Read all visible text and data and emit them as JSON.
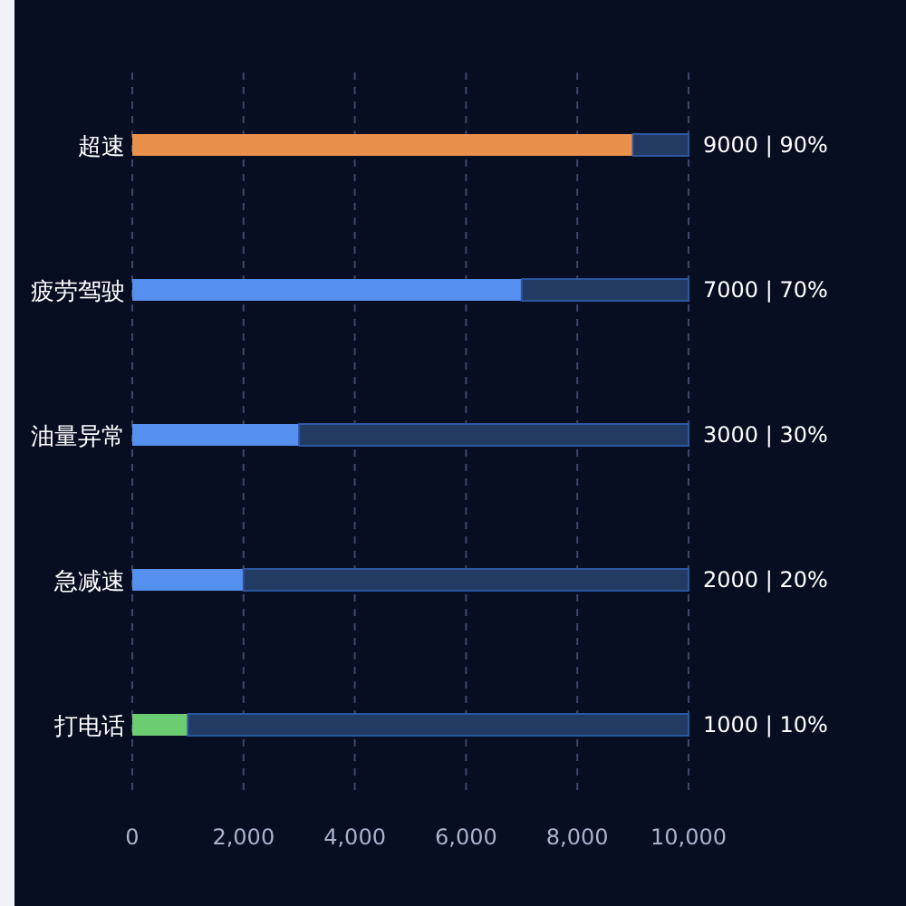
{
  "chart_data": {
    "type": "bar",
    "orientation": "horizontal",
    "stacked": true,
    "categories": [
      "超速",
      "疲劳驾驶",
      "油量异常",
      "急减速",
      "打电话"
    ],
    "series": [
      {
        "colors": [
          "#e9904a",
          "#5590ee",
          "#5590ee",
          "#5590ee",
          "#6ccc72"
        ],
        "values": [
          9000,
          7000,
          3000,
          2000,
          1000
        ],
        "value_labels": [
          "9000 | 90%",
          "7000 | 70%",
          "3000 | 30%",
          "2000 | 20%",
          "1000 | 10%"
        ]
      },
      {
        "color": "#233a63",
        "values": [
          1000,
          3000,
          7000,
          8000,
          9000
        ]
      }
    ],
    "xlim": [
      0,
      10000
    ],
    "xticks": [
      {
        "value": 0,
        "label": "0"
      },
      {
        "value": 2000,
        "label": "2,000"
      },
      {
        "value": 4000,
        "label": "4,000"
      },
      {
        "value": 6000,
        "label": "6,000"
      },
      {
        "value": 8000,
        "label": "8,000"
      },
      {
        "value": 10000,
        "label": "10,000"
      }
    ],
    "grid": "x"
  }
}
